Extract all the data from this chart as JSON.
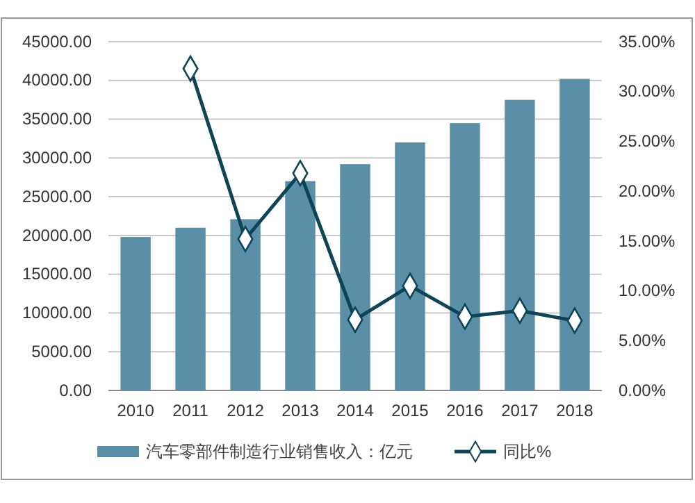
{
  "chart_data": {
    "type": "bar",
    "categories": [
      "2010",
      "2011",
      "2012",
      "2013",
      "2014",
      "2015",
      "2016",
      "2017",
      "2018"
    ],
    "series": [
      {
        "name": "汽车零部件制造行业销售收入：亿元",
        "color": "#5b8fa8",
        "values": [
          19800,
          21000,
          22100,
          27000,
          29200,
          32000,
          34500,
          37500,
          40200
        ]
      },
      {
        "name": "同比%",
        "type": "line",
        "axis": "y2",
        "color": "#0e4457",
        "marker": "diamond",
        "values": [
          null,
          32.3,
          15.2,
          21.8,
          7.1,
          10.5,
          7.4,
          8.0,
          7.0
        ]
      }
    ],
    "ylim": [
      0,
      45000
    ],
    "yticks": [
      {
        "value": 0,
        "label": "0.00"
      },
      {
        "value": 5000,
        "label": "5000.00"
      },
      {
        "value": 10000,
        "label": "10000.00"
      },
      {
        "value": 15000,
        "label": "15000.00"
      },
      {
        "value": 20000,
        "label": "20000.00"
      },
      {
        "value": 25000,
        "label": "25000.00"
      },
      {
        "value": 30000,
        "label": "30000.00"
      },
      {
        "value": 35000,
        "label": "35000.00"
      },
      {
        "value": 40000,
        "label": "40000.00"
      },
      {
        "value": 45000,
        "label": "45000.00"
      }
    ],
    "y2lim": [
      0,
      35
    ],
    "y2ticks": [
      {
        "value": 0,
        "label": "0.00%"
      },
      {
        "value": 5,
        "label": "5.00%"
      },
      {
        "value": 10,
        "label": "10.00%"
      },
      {
        "value": 15,
        "label": "15.00%"
      },
      {
        "value": 20,
        "label": "20.00%"
      },
      {
        "value": 25,
        "label": "25.00%"
      },
      {
        "value": 30,
        "label": "30.00%"
      },
      {
        "value": 35,
        "label": "35.00%"
      }
    ],
    "grid": "y",
    "legend": "bottom"
  }
}
